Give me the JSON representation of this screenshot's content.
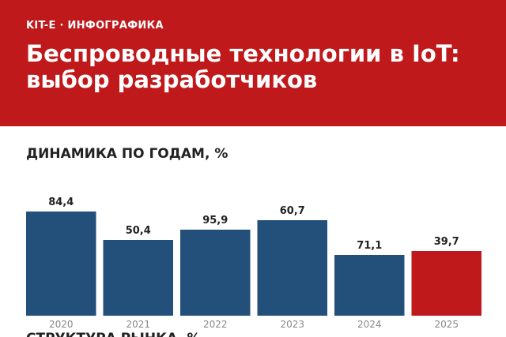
{
  "header": {
    "kicker": "KIT-E · ИНФОГРАФИКА",
    "title": "Беспроводные технологии в IoT: выбор разработчиков"
  },
  "sections": {
    "dynamics": "ДИНАМИКА ПО ГОДАМ, %",
    "structure": "СТРУКТУРА РЫНКА, %"
  },
  "colors": {
    "brand_red": "#bf191b",
    "bar_blue": "#22507a",
    "highlight_red": "#bf191b"
  },
  "chart_data": {
    "type": "bar",
    "categories": [
      "2020",
      "2021",
      "2022",
      "2023",
      "2024",
      "2025"
    ],
    "values": [
      84.4,
      50.4,
      95.9,
      60.7,
      71.1,
      39.7
    ],
    "value_labels": [
      "84,4",
      "50,4",
      "95,9",
      "60,7",
      "71,1",
      "39,7"
    ],
    "highlighted": [
      false,
      false,
      false,
      false,
      false,
      true
    ],
    "title": "ДИНАМИКА ПО ГОДАМ, %",
    "xlabel": "",
    "ylabel": "",
    "grid": false
  }
}
